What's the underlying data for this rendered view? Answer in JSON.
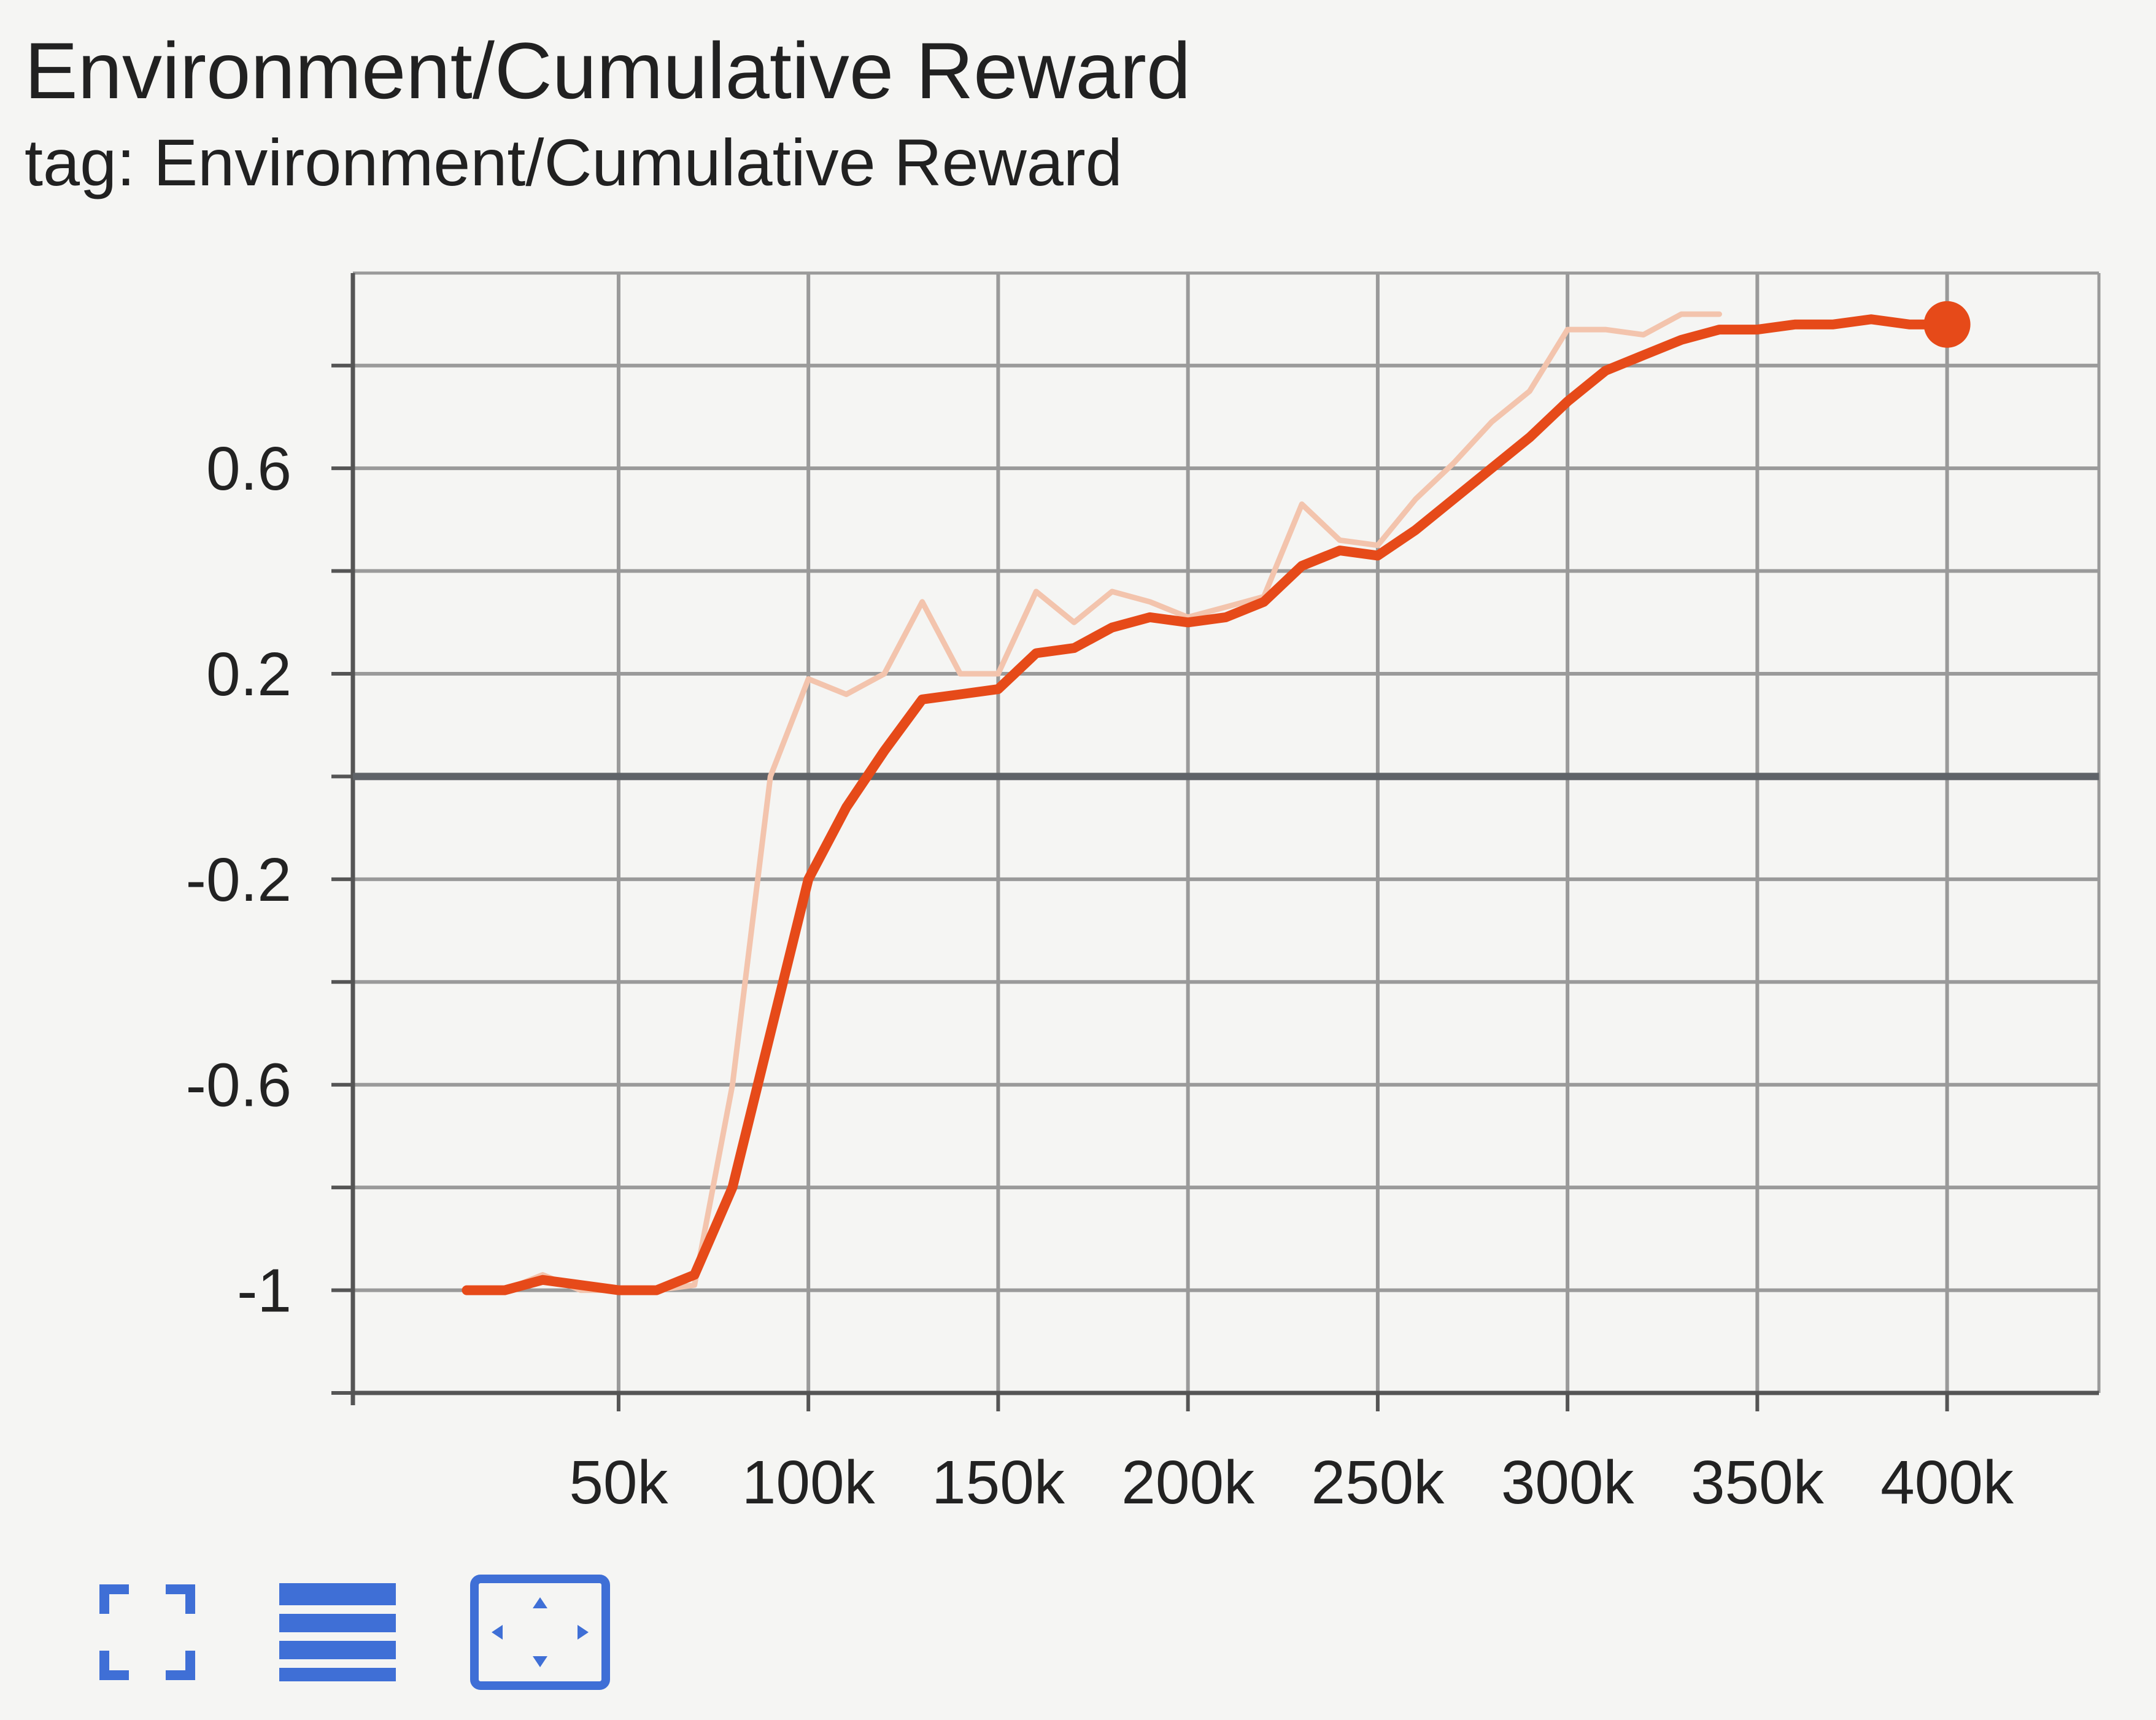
{
  "card": {
    "title": "Environment/Cumulative Reward",
    "subtitle": "tag: Environment/Cumulative Reward"
  },
  "toolbar": {
    "buttons": [
      {
        "icon": "fullscreen-icon"
      },
      {
        "icon": "data-table-icon"
      },
      {
        "icon": "fit-domain-icon"
      }
    ]
  },
  "colors": {
    "smoothed": "#e64a19",
    "raw": "#f3c4ad",
    "grid": "#9a9a9a",
    "zero_line": "#5f6368",
    "icon": "#3f6fd6"
  },
  "chart_data": {
    "type": "line",
    "title": "Environment/Cumulative Reward",
    "xlim": [
      -20000,
      440000
    ],
    "ylim": [
      -1.2,
      0.98
    ],
    "x_ticks": [
      50000,
      100000,
      150000,
      200000,
      250000,
      300000,
      350000,
      400000
    ],
    "x_tick_labels": [
      "50k",
      "100k",
      "150k",
      "200k",
      "250k",
      "300k",
      "350k",
      "400k"
    ],
    "y_ticks": [
      0.6,
      0.2,
      -0.2,
      -0.6,
      -1
    ],
    "y_tick_labels": [
      "0.6",
      "0.2",
      "-0.2",
      "-0.6",
      "-1"
    ],
    "y_minor_ticks": [
      0.8,
      0.4,
      0,
      -0.4,
      -0.8,
      -1.2
    ],
    "grid": true,
    "series": [
      {
        "style": "raw",
        "x": [
          10000,
          20000,
          30000,
          40000,
          50000,
          60000,
          70000,
          80000,
          90000,
          100000,
          110000,
          120000,
          130000,
          140000,
          150000,
          160000,
          170000,
          180000,
          190000,
          200000,
          210000,
          220000,
          230000,
          240000,
          250000,
          260000,
          270000,
          280000,
          290000,
          300000,
          310000,
          320000,
          330000,
          340000
        ],
        "y": [
          -1.0,
          -1.0,
          -0.97,
          -1.0,
          -1.0,
          -1.0,
          -0.99,
          -0.6,
          0.0,
          0.19,
          0.16,
          0.2,
          0.34,
          0.2,
          0.2,
          0.36,
          0.3,
          0.36,
          0.34,
          0.31,
          0.33,
          0.35,
          0.53,
          0.46,
          0.45,
          0.54,
          0.61,
          0.69,
          0.75,
          0.87,
          0.87,
          0.86,
          0.9,
          0.9
        ]
      },
      {
        "style": "smoothed",
        "x": [
          10000,
          20000,
          30000,
          40000,
          50000,
          60000,
          70000,
          80000,
          90000,
          100000,
          110000,
          120000,
          130000,
          140000,
          150000,
          160000,
          170000,
          180000,
          190000,
          200000,
          210000,
          220000,
          230000,
          240000,
          250000,
          260000,
          270000,
          280000,
          290000,
          300000,
          310000,
          320000,
          330000,
          340000,
          350000,
          360000,
          370000,
          380000,
          390000,
          400000
        ],
        "y": [
          -1.0,
          -1.0,
          -0.98,
          -0.99,
          -1.0,
          -1.0,
          -0.97,
          -0.8,
          -0.5,
          -0.2,
          -0.06,
          0.05,
          0.15,
          0.16,
          0.17,
          0.24,
          0.25,
          0.29,
          0.31,
          0.3,
          0.31,
          0.34,
          0.41,
          0.44,
          0.43,
          0.48,
          0.54,
          0.6,
          0.66,
          0.73,
          0.79,
          0.82,
          0.85,
          0.87,
          0.87,
          0.88,
          0.88,
          0.89,
          0.88,
          0.88
        ]
      }
    ],
    "end_marker": {
      "x": 400000,
      "y": 0.88
    }
  }
}
